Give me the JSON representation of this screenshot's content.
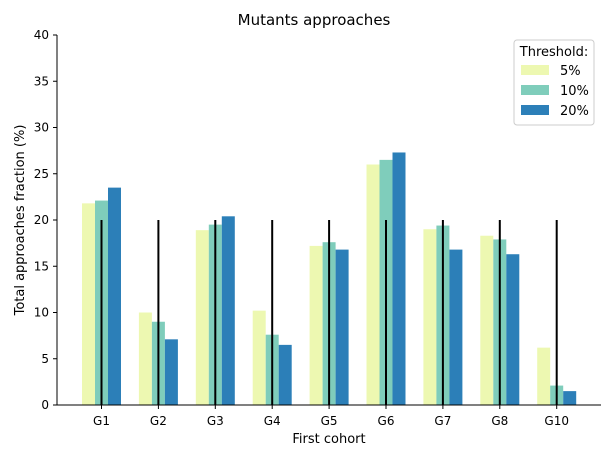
{
  "chart_data": {
    "type": "bar",
    "title": "Mutants approaches",
    "xlabel": "First cohort",
    "ylabel": "Total approaches fraction (%)",
    "ylim": [
      0,
      40
    ],
    "yticks": [
      0,
      5,
      10,
      15,
      20,
      25,
      30,
      35,
      40
    ],
    "categories": [
      "G1",
      "G2",
      "G3",
      "G4",
      "G5",
      "G6",
      "G7",
      "G8",
      "G10"
    ],
    "series": [
      {
        "name": "5%",
        "color": "#edf8b1",
        "values": [
          21.8,
          10.0,
          18.9,
          10.2,
          17.2,
          26.0,
          19.0,
          18.3,
          6.2
        ]
      },
      {
        "name": "10%",
        "color": "#7fcdbb",
        "values": [
          22.1,
          9.0,
          19.5,
          7.6,
          17.6,
          26.5,
          19.4,
          17.9,
          2.1
        ]
      },
      {
        "name": "20%",
        "color": "#2c7fb8",
        "values": [
          23.5,
          7.1,
          20.4,
          6.5,
          16.8,
          27.3,
          16.8,
          16.3,
          1.5
        ]
      }
    ],
    "reference_line": {
      "value": 20,
      "color": "#000000",
      "categories": [
        "G1",
        "G2",
        "G3",
        "G4",
        "G5",
        "G6",
        "G7",
        "G8",
        "G10"
      ]
    },
    "legend": {
      "title": "Threshold:",
      "placement": "top-right"
    },
    "grid": false
  }
}
